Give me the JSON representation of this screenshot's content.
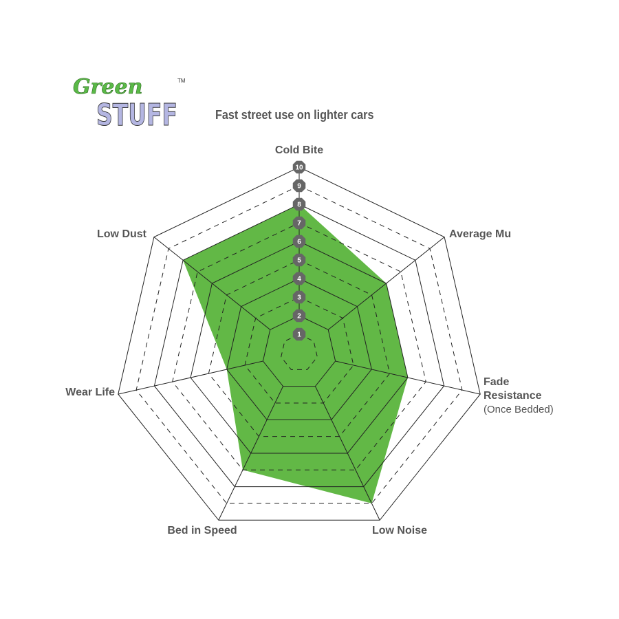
{
  "logo": {
    "text_line1": "Green",
    "text_line2": "STUFF",
    "trademark": "TM"
  },
  "chart_data": {
    "type": "radar",
    "title": "Fast street use on lighter cars",
    "axes": [
      {
        "label": "Cold Bite",
        "sublabel": ""
      },
      {
        "label": "Average Mu",
        "sublabel": ""
      },
      {
        "label": "Fade Resistance",
        "sublabel": "(Once Bedded)"
      },
      {
        "label": "Low Noise",
        "sublabel": ""
      },
      {
        "label": "Bed in Speed",
        "sublabel": ""
      },
      {
        "label": "Wear Life",
        "sublabel": ""
      },
      {
        "label": "Low Dust",
        "sublabel": ""
      }
    ],
    "values": [
      8,
      6,
      6,
      9,
      7,
      4,
      8
    ],
    "range": [
      0,
      10
    ],
    "scale_ticks": [
      "1",
      "2",
      "3",
      "4",
      "5",
      "6",
      "7",
      "8",
      "9",
      "10"
    ],
    "grid": "solid at even levels, dashed at odd levels",
    "fill_color": "#62b846",
    "tick_badge_color": "#666666"
  }
}
